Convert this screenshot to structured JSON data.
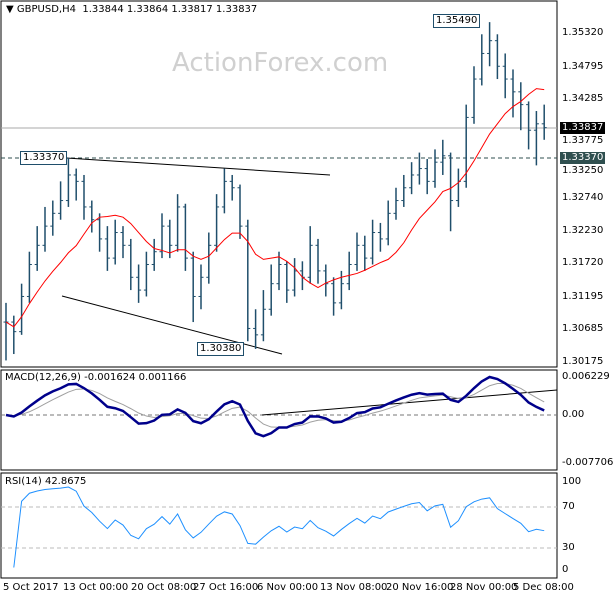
{
  "header": {
    "symbol": "GBPUSD,H4",
    "ohlc": "1.33844 1.33864 1.33817 1.33837"
  },
  "watermark": "ActionForex.com",
  "annotations": {
    "high_left": "1.33370",
    "low": "1.30380",
    "high_right": "1.35490"
  },
  "price_axis": {
    "ticks": [
      "1.35320",
      "1.34795",
      "1.34285",
      "1.33775",
      "1.33250",
      "1.32740",
      "1.32230",
      "1.31720",
      "1.31195",
      "1.30685",
      "1.30175"
    ],
    "current": "1.33837",
    "level": "1.33370"
  },
  "macd": {
    "label": "MACD(12,26,9) -0.001624 0.001166",
    "ticks": [
      "0.006229",
      "0.00",
      "-0.007706"
    ]
  },
  "rsi": {
    "label": "RSI(14) 42.8675",
    "ticks": [
      "100",
      "70",
      "30",
      "0"
    ]
  },
  "time_axis": [
    "5 Oct 2017",
    "13 Oct 00:00",
    "20 Oct 08:00",
    "27 Oct 16:00",
    "6 Nov 00:00",
    "13 Nov 08:00",
    "20 Nov 16:00",
    "28 Nov 00:00",
    "5 Dec 08:00"
  ],
  "colors": {
    "bars": "#1f4e6b",
    "ma": "#ff0000",
    "macd": "#00008b",
    "signal": "#a0a0a0",
    "rsi": "#1e90ff"
  },
  "chart_data": {
    "type": "ohlc",
    "ylim": [
      1.30175,
      1.3532
    ],
    "close": [
      1.308,
      1.3065,
      1.312,
      1.317,
      1.32,
      1.323,
      1.325,
      1.327,
      1.331,
      1.33,
      1.326,
      1.324,
      1.321,
      1.318,
      1.322,
      1.32,
      1.315,
      1.313,
      1.317,
      1.319,
      1.323,
      1.32,
      1.326,
      1.318,
      1.312,
      1.315,
      1.32,
      1.326,
      1.33,
      1.329,
      1.323,
      1.307,
      1.306,
      1.31,
      1.314,
      1.317,
      1.313,
      1.316,
      1.315,
      1.32,
      1.316,
      1.314,
      1.311,
      1.314,
      1.317,
      1.32,
      1.318,
      1.322,
      1.321,
      1.325,
      1.327,
      1.329,
      1.331,
      1.332,
      1.33,
      1.333,
      1.334,
      1.327,
      1.33,
      1.34,
      1.346,
      1.35,
      1.352,
      1.348,
      1.346,
      1.344,
      1.342,
      1.338,
      1.339,
      1.3384
    ],
    "high": [
      1.311,
      1.309,
      1.314,
      1.319,
      1.323,
      1.326,
      1.327,
      1.33,
      1.3337,
      1.332,
      1.331,
      1.327,
      1.325,
      1.323,
      1.324,
      1.323,
      1.321,
      1.317,
      1.319,
      1.321,
      1.325,
      1.324,
      1.328,
      1.3265,
      1.319,
      1.317,
      1.322,
      1.328,
      1.332,
      1.331,
      1.3295,
      1.324,
      1.31,
      1.313,
      1.317,
      1.319,
      1.3175,
      1.318,
      1.3175,
      1.323,
      1.321,
      1.317,
      1.315,
      1.316,
      1.319,
      1.322,
      1.3215,
      1.324,
      1.3235,
      1.327,
      1.329,
      1.331,
      1.333,
      1.3345,
      1.3335,
      1.335,
      1.3365,
      1.3345,
      1.332,
      1.342,
      1.348,
      1.353,
      1.3549,
      1.353,
      1.35,
      1.3475,
      1.3455,
      1.3425,
      1.341,
      1.342
    ],
    "low": [
      1.302,
      1.303,
      1.306,
      1.311,
      1.316,
      1.319,
      1.3215,
      1.324,
      1.326,
      1.327,
      1.324,
      1.322,
      1.319,
      1.316,
      1.317,
      1.318,
      1.313,
      1.311,
      1.312,
      1.316,
      1.318,
      1.318,
      1.319,
      1.316,
      1.308,
      1.31,
      1.314,
      1.319,
      1.325,
      1.327,
      1.321,
      1.305,
      1.3038,
      1.305,
      1.309,
      1.313,
      1.311,
      1.312,
      1.313,
      1.314,
      1.314,
      1.312,
      1.309,
      1.31,
      1.313,
      1.316,
      1.316,
      1.317,
      1.319,
      1.32,
      1.324,
      1.326,
      1.328,
      1.3295,
      1.328,
      1.329,
      1.331,
      1.3222,
      1.326,
      1.329,
      1.339,
      1.345,
      1.348,
      1.346,
      1.343,
      1.34,
      1.338,
      1.335,
      1.3325,
      1.3365
    ]
  }
}
